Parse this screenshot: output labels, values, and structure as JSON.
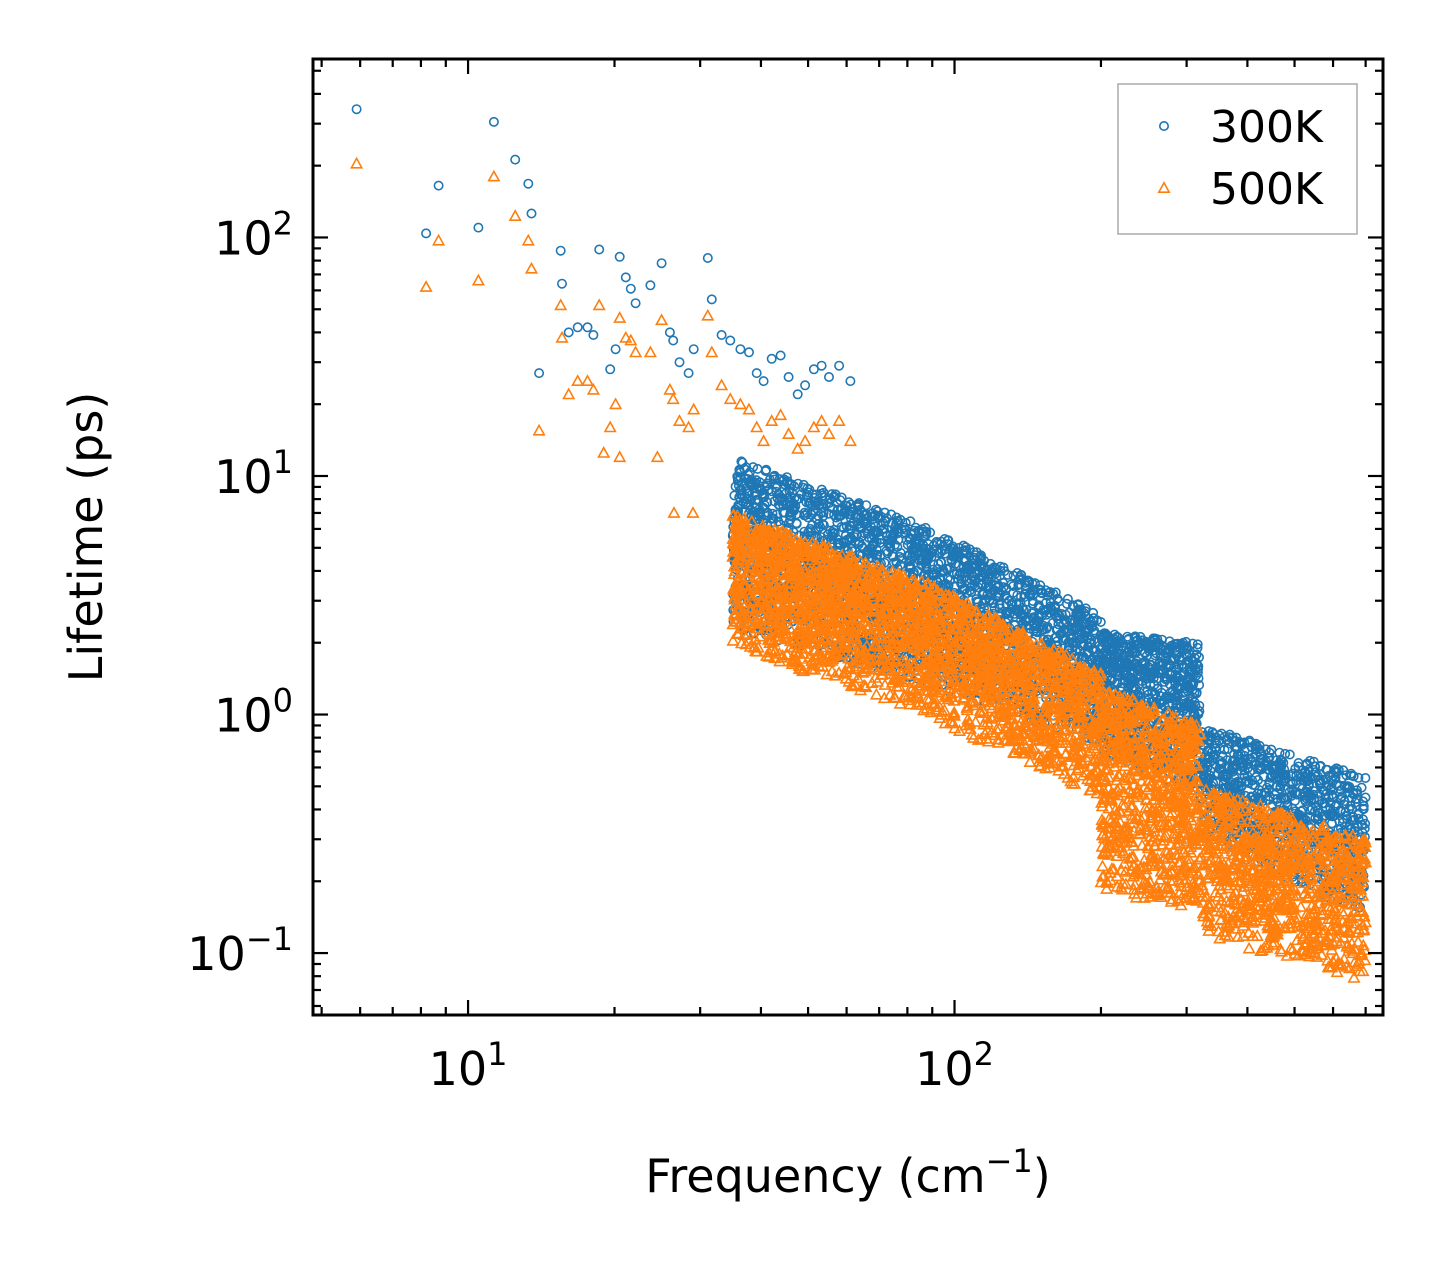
{
  "chart_data": {
    "type": "scatter",
    "xscale": "log",
    "yscale": "log",
    "xlabel_main": "Frequency (cm",
    "xlabel_sup": "−1",
    "xlabel_close": ")",
    "ylabel": "Lifetime (ps)",
    "xlim": [
      4.8,
      760
    ],
    "ylim": [
      0.055,
      560
    ],
    "xticks": [
      {
        "value": 10,
        "base": "10",
        "exp": "1"
      },
      {
        "value": 100,
        "base": "10",
        "exp": "2"
      }
    ],
    "yticks": [
      {
        "value": 0.1,
        "base": "10",
        "exp": "−1"
      },
      {
        "value": 1,
        "base": "10",
        "exp": "0"
      },
      {
        "value": 10,
        "base": "10",
        "exp": "1"
      },
      {
        "value": 100,
        "base": "10",
        "exp": "2"
      }
    ],
    "legend": {
      "position": "top-right"
    },
    "series": [
      {
        "name": "300K",
        "marker": "circle",
        "color": "#1f77b4",
        "sparse_points": [
          [
            5.9,
            345
          ],
          [
            8.2,
            104
          ],
          [
            8.7,
            165
          ],
          [
            10.5,
            110
          ],
          [
            11.3,
            305
          ],
          [
            12.5,
            212
          ],
          [
            13.3,
            168
          ],
          [
            13.5,
            126
          ],
          [
            14.0,
            27
          ],
          [
            15.5,
            88
          ],
          [
            15.6,
            64
          ],
          [
            16.1,
            40
          ],
          [
            16.8,
            42
          ],
          [
            17.6,
            42
          ],
          [
            18.1,
            39
          ],
          [
            18.6,
            89
          ],
          [
            19.6,
            28
          ],
          [
            20.1,
            34
          ],
          [
            20.5,
            83
          ],
          [
            21.1,
            68
          ],
          [
            21.6,
            61
          ],
          [
            22.1,
            53
          ],
          [
            23.7,
            63
          ],
          [
            25.0,
            78
          ],
          [
            26.0,
            40
          ],
          [
            26.4,
            37
          ],
          [
            27.2,
            30
          ],
          [
            28.4,
            27
          ],
          [
            29.1,
            34
          ],
          [
            31.1,
            82
          ],
          [
            31.7,
            55
          ],
          [
            33.2,
            39
          ],
          [
            34.6,
            37
          ],
          [
            36.3,
            34
          ],
          [
            37.8,
            33
          ],
          [
            39.2,
            27
          ],
          [
            40.5,
            25
          ],
          [
            42.1,
            31
          ],
          [
            43.9,
            32
          ],
          [
            45.6,
            26
          ],
          [
            47.6,
            22
          ],
          [
            49.3,
            24
          ],
          [
            51.4,
            28
          ],
          [
            53.3,
            29
          ],
          [
            55.2,
            26
          ],
          [
            57.9,
            29
          ],
          [
            61.1,
            25
          ]
        ],
        "bands": [
          {
            "x": [
              35,
              90
            ],
            "y_start": [
              12,
              6
            ],
            "y_end": [
              2.3,
              1.3
            ],
            "count": 1300
          },
          {
            "x": [
              90,
              200
            ],
            "y_start": [
              6,
              2.6
            ],
            "y_end": [
              1.3,
              0.75
            ],
            "count": 1000
          },
          {
            "x": [
              200,
              320
            ],
            "y_start": [
              2.2,
              2.0
            ],
            "y_end": [
              0.7,
              0.45
            ],
            "count": 800
          },
          {
            "x": [
              320,
              700
            ],
            "y_start": [
              0.9,
              0.55
            ],
            "y_end": [
              0.3,
              0.14
            ],
            "count": 900
          }
        ]
      },
      {
        "name": "500K",
        "marker": "triangle",
        "color": "#ff7f0e",
        "sparse_points": [
          [
            5.9,
            204
          ],
          [
            8.2,
            62
          ],
          [
            8.7,
            97
          ],
          [
            10.5,
            66
          ],
          [
            11.3,
            180
          ],
          [
            12.5,
            123
          ],
          [
            13.3,
            97
          ],
          [
            13.5,
            74
          ],
          [
            14.0,
            15.5
          ],
          [
            15.5,
            52
          ],
          [
            15.6,
            38
          ],
          [
            16.1,
            22
          ],
          [
            16.8,
            25
          ],
          [
            17.6,
            25
          ],
          [
            18.1,
            23
          ],
          [
            18.6,
            52
          ],
          [
            19.6,
            16
          ],
          [
            20.1,
            20
          ],
          [
            20.5,
            46
          ],
          [
            21.1,
            38
          ],
          [
            21.6,
            37
          ],
          [
            22.1,
            33
          ],
          [
            23.7,
            33
          ],
          [
            25.0,
            45
          ],
          [
            26.0,
            23
          ],
          [
            26.4,
            21
          ],
          [
            27.2,
            17
          ],
          [
            28.4,
            16
          ],
          [
            29.1,
            19
          ],
          [
            31.1,
            47
          ],
          [
            31.7,
            33
          ],
          [
            33.2,
            24
          ],
          [
            34.6,
            21
          ],
          [
            36.3,
            20
          ],
          [
            37.8,
            19
          ],
          [
            39.2,
            16
          ],
          [
            40.5,
            14
          ],
          [
            42.1,
            17
          ],
          [
            43.9,
            18
          ],
          [
            45.6,
            15
          ],
          [
            47.6,
            13
          ],
          [
            49.3,
            14
          ],
          [
            51.4,
            16
          ],
          [
            53.3,
            17
          ],
          [
            55.2,
            15
          ],
          [
            57.9,
            17
          ],
          [
            61.1,
            14
          ],
          [
            19.0,
            12.5
          ],
          [
            20.5,
            12
          ],
          [
            24.5,
            12
          ],
          [
            26.5,
            7
          ],
          [
            29.0,
            7
          ]
        ],
        "bands": [
          {
            "x": [
              35,
              90
            ],
            "y_start": [
              7,
              3.5
            ],
            "y_end": [
              1.9,
              1.0
            ],
            "count": 1300
          },
          {
            "x": [
              90,
              200
            ],
            "y_start": [
              3.5,
              1.5
            ],
            "y_end": [
              0.95,
              0.45
            ],
            "count": 1000
          },
          {
            "x": [
              200,
              320
            ],
            "y_start": [
              1.3,
              0.9
            ],
            "y_end": [
              0.18,
              0.15
            ],
            "count": 800
          },
          {
            "x": [
              320,
              700
            ],
            "y_start": [
              0.5,
              0.3
            ],
            "y_end": [
              0.12,
              0.075
            ],
            "count": 900
          }
        ]
      }
    ]
  }
}
